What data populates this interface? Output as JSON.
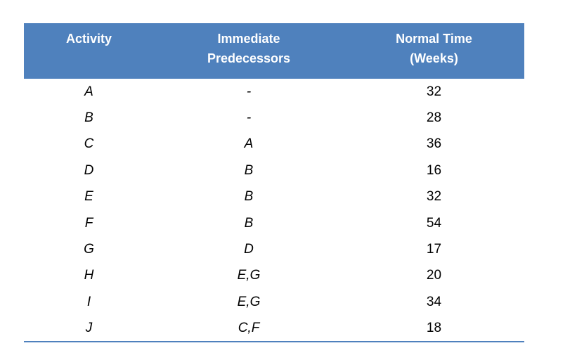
{
  "table": {
    "theme": {
      "header_bg": "#4F81BD",
      "header_text": "#FFFFFF",
      "body_text": "#000000",
      "bottom_border": "#4F81BD"
    },
    "columns": [
      {
        "id": "activity",
        "label": "Activity"
      },
      {
        "id": "predecessors",
        "label": "Immediate\nPredecessors"
      },
      {
        "id": "normal_time",
        "label": "Normal Time\n(Weeks)"
      }
    ],
    "rows": [
      {
        "activity": "A",
        "predecessors": "-",
        "normal_time": "32"
      },
      {
        "activity": "B",
        "predecessors": "-",
        "normal_time": "28"
      },
      {
        "activity": "C",
        "predecessors": "A",
        "normal_time": "36"
      },
      {
        "activity": "D",
        "predecessors": "B",
        "normal_time": "16"
      },
      {
        "activity": "E",
        "predecessors": "B",
        "normal_time": "32"
      },
      {
        "activity": "F",
        "predecessors": "B",
        "normal_time": "54"
      },
      {
        "activity": "G",
        "predecessors": "D",
        "normal_time": "17"
      },
      {
        "activity": "H",
        "predecessors": "E,G",
        "normal_time": "20"
      },
      {
        "activity": "I",
        "predecessors": "E,G",
        "normal_time": "34"
      },
      {
        "activity": "J",
        "predecessors": "C,F",
        "normal_time": "18"
      }
    ]
  }
}
